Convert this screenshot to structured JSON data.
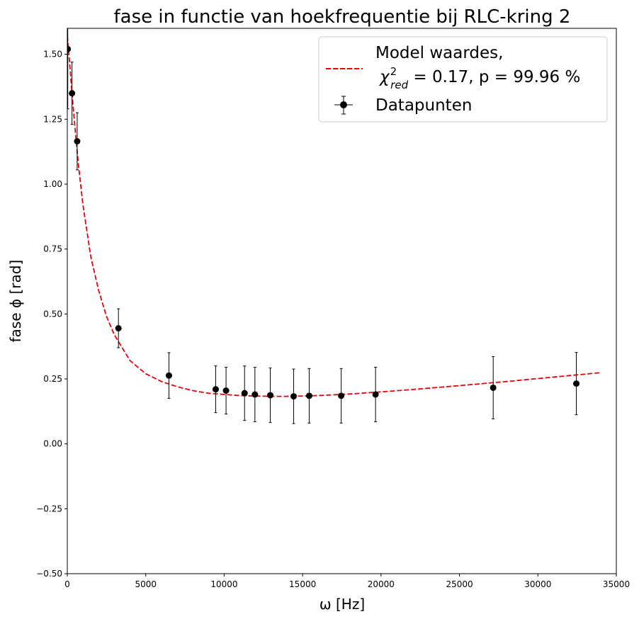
{
  "chart_data": {
    "type": "scatter",
    "title": "fase in functie van hoekfrequentie bij RLC-kring 2",
    "xlabel": "ω [Hz]",
    "ylabel": "fase ϕ [rad]",
    "xlim": [
      0,
      35000
    ],
    "ylim": [
      -0.5,
      1.6
    ],
    "xticks": [
      0,
      5000,
      10000,
      15000,
      20000,
      25000,
      30000,
      35000
    ],
    "xtick_labels": [
      "0",
      "5000",
      "10000",
      "15000",
      "20000",
      "25000",
      "30000",
      "35000"
    ],
    "yticks": [
      -0.5,
      -0.25,
      0.0,
      0.25,
      0.5,
      0.75,
      1.0,
      1.25,
      1.5
    ],
    "ytick_labels": [
      "−0.50",
      "−0.25",
      "0.00",
      "0.25",
      "0.50",
      "0.75",
      "1.00",
      "1.25",
      "1.50"
    ],
    "grid": false,
    "legend_position": "top-right",
    "legend": {
      "model_line1": "Model waardes,",
      "model_line2_symbol": "χ",
      "model_line2_sup": "2",
      "model_line2_sub": "red",
      "model_line2_rest": " = 0.17, p = 99.96 %",
      "data_label": "Datapunten"
    },
    "colors": {
      "model": "#e8000b",
      "data": "#000000"
    },
    "series": [
      {
        "name": "Model waardes",
        "kind": "dashed-line",
        "x": [
          0,
          100,
          200,
          300,
          500,
          700,
          1000,
          1500,
          2000,
          2500,
          3000,
          3500,
          4000,
          5000,
          6000,
          7000,
          8000,
          9000,
          10000,
          11000,
          12000,
          13000,
          14000,
          15000,
          16000,
          18000,
          20000,
          22000,
          25000,
          28000,
          31000,
          34000
        ],
        "y": [
          1.57,
          1.5,
          1.43,
          1.35,
          1.21,
          1.08,
          0.92,
          0.72,
          0.59,
          0.49,
          0.42,
          0.37,
          0.32,
          0.27,
          0.24,
          0.22,
          0.205,
          0.195,
          0.19,
          0.186,
          0.184,
          0.183,
          0.183,
          0.184,
          0.186,
          0.192,
          0.2,
          0.209,
          0.224,
          0.24,
          0.257,
          0.274
        ]
      },
      {
        "name": "Datapunten",
        "kind": "errorbar",
        "x": [
          30,
          300,
          630,
          3260,
          6480,
          9460,
          10120,
          11300,
          11960,
          12940,
          14430,
          15420,
          17460,
          19650,
          27150,
          32450
        ],
        "y": [
          1.52,
          1.35,
          1.165,
          0.445,
          0.263,
          0.21,
          0.205,
          0.195,
          0.19,
          0.187,
          0.183,
          0.185,
          0.185,
          0.19,
          0.216,
          0.232
        ],
        "yerr": [
          0.23,
          0.12,
          0.11,
          0.075,
          0.088,
          0.09,
          0.09,
          0.105,
          0.105,
          0.105,
          0.105,
          0.105,
          0.105,
          0.105,
          0.12,
          0.12
        ]
      }
    ]
  }
}
